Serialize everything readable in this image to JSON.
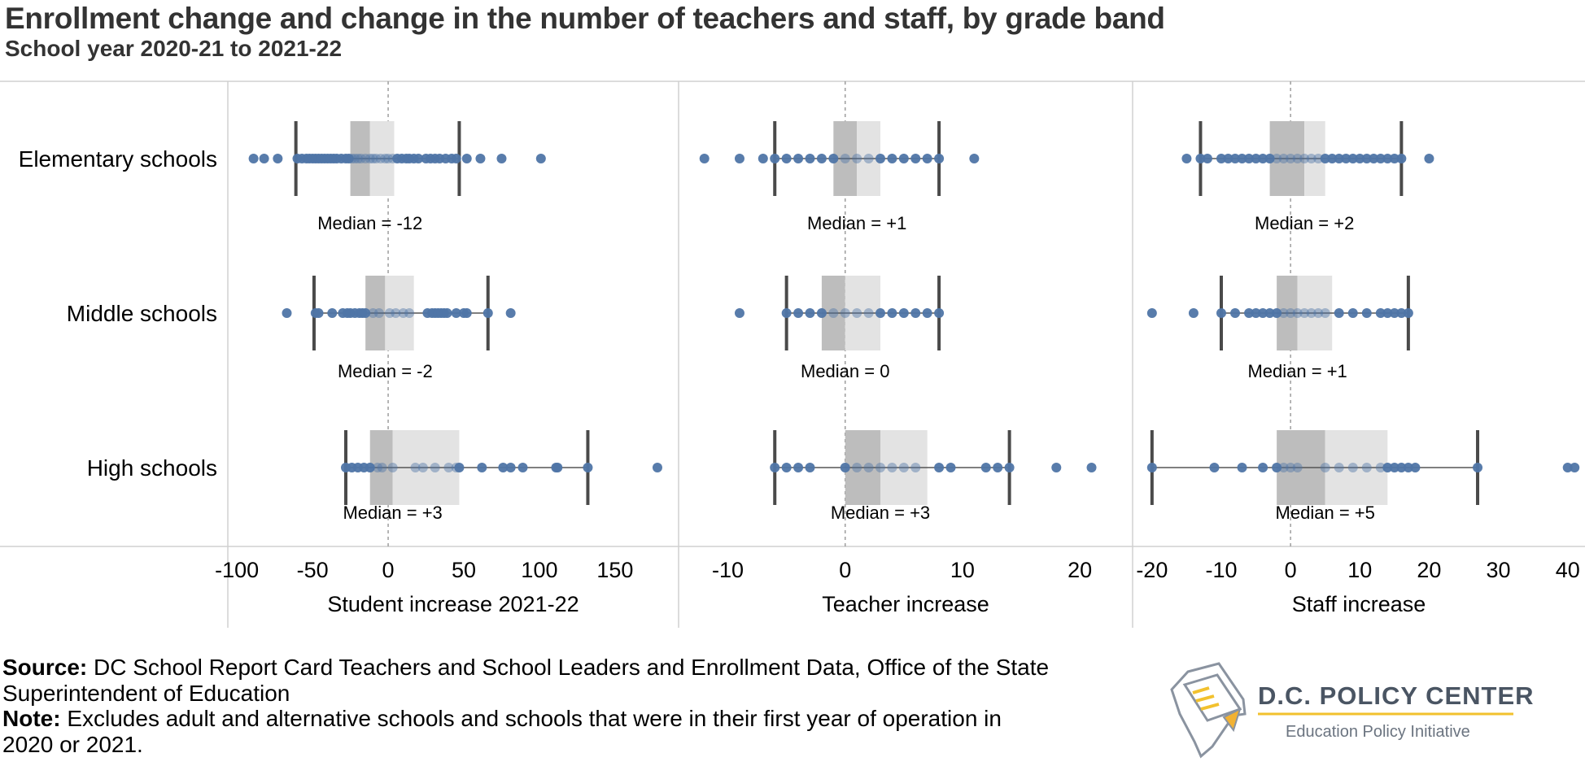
{
  "title": "Enrollment change and change in the number of teachers and staff, by grade band",
  "subtitle": "School year 2020-21 to 2021-22",
  "chart_data": {
    "type": "box",
    "categories": [
      "Elementary schools",
      "Middle schools",
      "High schools"
    ],
    "panels": [
      {
        "xlabel": "Student increase 2021-22",
        "ticks": [
          -100,
          -50,
          0,
          50,
          100,
          150
        ],
        "tick_labels": [
          "-100",
          "-50",
          "0",
          "50",
          "100",
          "150"
        ],
        "xlim": [
          -106,
          192
        ],
        "boxes": [
          {
            "category": "Elementary schools",
            "whisker_low": -61,
            "q1": -25,
            "median": -12,
            "q3": 4,
            "whisker_high": 47,
            "median_label": "Median = -12",
            "points": [
              -89,
              -82,
              -73,
              -60,
              -57,
              -54,
              -52,
              -50,
              -48,
              -46,
              -44,
              -42,
              -40,
              -38,
              -36,
              -34,
              -31,
              -28,
              -26,
              -24,
              -22,
              -20,
              -18,
              -15,
              -12,
              -10,
              -8,
              -5,
              -2,
              0,
              3,
              6,
              9,
              12,
              14,
              17,
              20,
              25,
              28,
              31,
              34,
              38,
              42,
              45,
              52,
              61,
              75,
              101
            ]
          },
          {
            "category": "Middle schools",
            "whisker_low": -49,
            "q1": -15,
            "median": -2,
            "q3": 17,
            "whisker_high": 66,
            "median_label": "Median = -2",
            "points": [
              -67,
              -48,
              -46,
              -37,
              -30,
              -27,
              -25,
              -22,
              -19,
              -17,
              -15,
              -10,
              -6,
              1,
              5,
              10,
              14,
              26,
              29,
              31,
              33,
              35,
              37,
              39,
              45,
              50,
              52,
              66,
              81
            ]
          },
          {
            "category": "High schools",
            "whisker_low": -28,
            "q1": -12,
            "median": 3,
            "q3": 47,
            "whisker_high": 132,
            "median_label": "Median = +3",
            "points": [
              -28,
              -24,
              -20,
              -16,
              -12,
              -7,
              -4,
              3,
              18,
              23,
              31,
              40,
              45,
              47,
              62,
              76,
              81,
              89,
              111,
              112,
              132,
              178
            ]
          }
        ]
      },
      {
        "xlabel": "Teacher increase",
        "ticks": [
          -10,
          0,
          10,
          20
        ],
        "tick_labels": [
          "-10",
          "0",
          "10",
          "20"
        ],
        "xlim": [
          -14.2,
          24.5
        ],
        "boxes": [
          {
            "category": "Elementary schools",
            "whisker_low": -6,
            "q1": -1,
            "median": 1,
            "q3": 3,
            "whisker_high": 8,
            "median_label": "Median = +1",
            "points": [
              -12,
              -9,
              -7,
              -6,
              -5,
              -4,
              -3,
              -2,
              -1,
              0,
              1,
              2,
              3,
              4,
              5,
              6,
              7,
              8,
              11
            ]
          },
          {
            "category": "Middle schools",
            "whisker_low": -5,
            "q1": -2,
            "median": 0,
            "q3": 3,
            "whisker_high": 8,
            "median_label": "Median = 0",
            "points": [
              -9,
              -5,
              -4,
              -3,
              -2,
              -1,
              0,
              1,
              2,
              3,
              4,
              5,
              6,
              7,
              8
            ]
          },
          {
            "category": "High schools",
            "whisker_low": -6,
            "q1": 0,
            "median": 3,
            "q3": 7,
            "whisker_high": 14,
            "median_label": "Median = +3",
            "points": [
              -6,
              -5,
              -4,
              -3,
              0,
              1,
              2,
              3,
              4,
              5,
              6,
              8,
              9,
              12,
              13,
              14,
              18,
              21
            ]
          }
        ]
      },
      {
        "xlabel": "Staff increase",
        "ticks": [
          -20,
          -10,
          0,
          10,
          20,
          30,
          40
        ],
        "tick_labels": [
          "-20",
          "-10",
          "0",
          "10",
          "20",
          "30",
          "40"
        ],
        "xlim": [
          -22.8,
          42.5
        ],
        "boxes": [
          {
            "category": "Elementary schools",
            "whisker_low": -13,
            "q1": -3,
            "median": 2,
            "q3": 5,
            "whisker_high": 16,
            "median_label": "Median = +2",
            "points": [
              -15,
              -13,
              -12,
              -10,
              -9,
              -8,
              -7,
              -6,
              -5,
              -4,
              -3,
              -2,
              -1,
              0,
              1,
              2,
              3,
              4,
              5,
              6,
              7,
              8,
              9,
              10,
              11,
              12,
              13,
              14,
              15,
              16,
              20
            ]
          },
          {
            "category": "Middle schools",
            "whisker_low": -10,
            "q1": -2,
            "median": 1,
            "q3": 6,
            "whisker_high": 17,
            "median_label": "Median = +1",
            "points": [
              -20,
              -14,
              -10,
              -8,
              -6,
              -5,
              -4,
              -3,
              -2,
              -1,
              0,
              1,
              2,
              3,
              4,
              5,
              7,
              9,
              11,
              13,
              14,
              15,
              16,
              17
            ]
          },
          {
            "category": "High schools",
            "whisker_low": -20,
            "q1": -2,
            "median": 5,
            "q3": 14,
            "whisker_high": 27,
            "median_label": "Median = +5",
            "points": [
              -20,
              -11,
              -7,
              -4,
              -2,
              -1,
              0,
              1,
              5,
              7,
              9,
              11,
              13,
              14,
              15,
              16,
              17,
              18,
              27,
              40,
              41
            ]
          }
        ]
      }
    ],
    "colors": {
      "point": "#4f75a6",
      "box_lower": "#bdbdbd",
      "box_upper": "#e3e3e3",
      "whisker": "#4a4a4a",
      "zero_line": "#9e9e9e",
      "grid": "#d0d0d0"
    }
  },
  "footer": {
    "source_label": "Source:",
    "source_text": "DC School Report Card Teachers and School Leaders and Enrollment Data, Office of the State Superintendent of Education",
    "note_label": "Note:",
    "note_text": "Excludes adult and alternative schools and schools that were in their first year of operation in 2020 or 2021."
  },
  "logo": {
    "name": "D.C. POLICY CENTER",
    "tagline": "Education Policy Initiative",
    "icon": "dc-map-pencil-icon"
  }
}
